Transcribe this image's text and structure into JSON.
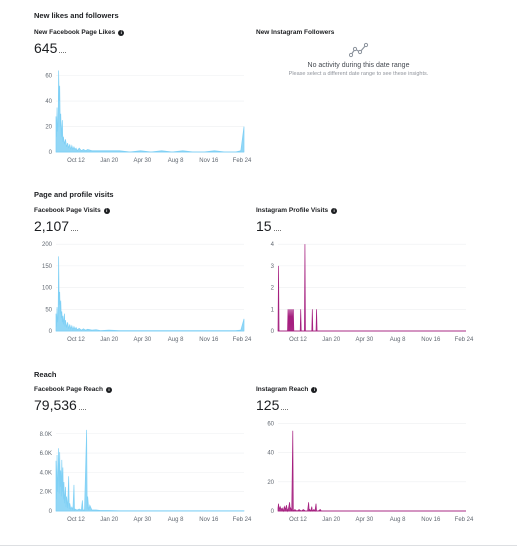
{
  "sections": [
    {
      "title": "New likes and followers"
    },
    {
      "title": "Page and profile visits"
    },
    {
      "title": "Reach"
    }
  ],
  "cards": {
    "fb_likes": {
      "title": "New Facebook Page Likes",
      "total": "645"
    },
    "ig_followers": {
      "title": "New Instagram Followers",
      "empty_title": "No activity during this date range",
      "empty_subtitle": "Please select a different date range to see these insights."
    },
    "fb_visits": {
      "title": "Facebook Page Visits",
      "total": "2,107"
    },
    "ig_visits": {
      "title": "Instagram Profile Visits",
      "total": "15"
    },
    "fb_reach": {
      "title": "Facebook Page Reach",
      "total": "79,536"
    },
    "ig_reach": {
      "title": "Instagram Reach",
      "total": "125"
    }
  },
  "colors": {
    "facebook": "#7fd0f5",
    "instagram": "#a51f7f"
  },
  "chart_data": [
    {
      "id": "fb_likes",
      "type": "area",
      "x_ticks": [
        "Oct 12",
        "Jan 20",
        "Apr 30",
        "Aug 8",
        "Nov 16",
        "Feb 24"
      ],
      "y_ticks": [
        "0",
        "20",
        "40",
        "60"
      ],
      "ylim": [
        0,
        66
      ],
      "points": [
        [
          0,
          28
        ],
        [
          0.5,
          12
        ],
        [
          1,
          35
        ],
        [
          1.5,
          16
        ],
        [
          2,
          22
        ],
        [
          2.5,
          64
        ],
        [
          3,
          40
        ],
        [
          3.5,
          52
        ],
        [
          4,
          20
        ],
        [
          4.5,
          30
        ],
        [
          5,
          12
        ],
        [
          6,
          25
        ],
        [
          6.5,
          8
        ],
        [
          7,
          12
        ],
        [
          8,
          6
        ],
        [
          9,
          10
        ],
        [
          10,
          4
        ],
        [
          11,
          7
        ],
        [
          12,
          3
        ],
        [
          13,
          6
        ],
        [
          14,
          2
        ],
        [
          15,
          5
        ],
        [
          16,
          2
        ],
        [
          17,
          4
        ],
        [
          18,
          2
        ],
        [
          19,
          3
        ],
        [
          20,
          1
        ],
        [
          22,
          3
        ],
        [
          24,
          1
        ],
        [
          26,
          2
        ],
        [
          28,
          1
        ],
        [
          30,
          2
        ],
        [
          34,
          1
        ],
        [
          38,
          1
        ],
        [
          42,
          1
        ],
        [
          50,
          1
        ],
        [
          60,
          1
        ],
        [
          70,
          0
        ],
        [
          80,
          1
        ],
        [
          90,
          0
        ],
        [
          100,
          1
        ],
        [
          110,
          0
        ],
        [
          120,
          1
        ],
        [
          130,
          0
        ],
        [
          140,
          0
        ],
        [
          150,
          1
        ],
        [
          160,
          0
        ],
        [
          170,
          0
        ],
        [
          175,
          1
        ],
        [
          178,
          20
        ]
      ]
    },
    {
      "id": "fb_visits",
      "type": "area",
      "x_ticks": [
        "Oct 12",
        "Jan 20",
        "Apr 30",
        "Aug 8",
        "Nov 16",
        "Feb 24"
      ],
      "y_ticks": [
        "0",
        "50",
        "100",
        "150",
        "200"
      ],
      "ylim": [
        0,
        205
      ],
      "points": [
        [
          0,
          40
        ],
        [
          0.5,
          10
        ],
        [
          1,
          55
        ],
        [
          1.5,
          20
        ],
        [
          2,
          30
        ],
        [
          2.5,
          172
        ],
        [
          3,
          60
        ],
        [
          3.5,
          90
        ],
        [
          4,
          40
        ],
        [
          4.5,
          70
        ],
        [
          5,
          30
        ],
        [
          5.5,
          45
        ],
        [
          6,
          20
        ],
        [
          6.5,
          35
        ],
        [
          7,
          15
        ],
        [
          8,
          40
        ],
        [
          8.5,
          10
        ],
        [
          9,
          25
        ],
        [
          10,
          8
        ],
        [
          11,
          20
        ],
        [
          12,
          5
        ],
        [
          13,
          15
        ],
        [
          14,
          5
        ],
        [
          15,
          12
        ],
        [
          16,
          3
        ],
        [
          17,
          10
        ],
        [
          18,
          4
        ],
        [
          19,
          8
        ],
        [
          20,
          3
        ],
        [
          22,
          6
        ],
        [
          24,
          2
        ],
        [
          26,
          5
        ],
        [
          28,
          2
        ],
        [
          30,
          4
        ],
        [
          34,
          2
        ],
        [
          38,
          3
        ],
        [
          42,
          1
        ],
        [
          50,
          2
        ],
        [
          60,
          1
        ],
        [
          70,
          1
        ],
        [
          80,
          1
        ],
        [
          90,
          1
        ],
        [
          100,
          1
        ],
        [
          110,
          1
        ],
        [
          120,
          1
        ],
        [
          130,
          1
        ],
        [
          140,
          1
        ],
        [
          150,
          1
        ],
        [
          160,
          1
        ],
        [
          170,
          1
        ],
        [
          175,
          2
        ],
        [
          178,
          28
        ]
      ]
    },
    {
      "id": "ig_visits",
      "type": "area",
      "x_ticks": [
        "Oct 12",
        "Jan 20",
        "Apr 30",
        "Aug 8",
        "Nov 16",
        "Feb 24"
      ],
      "y_ticks": [
        "0",
        "1",
        "2",
        "3",
        "4"
      ],
      "ylim": [
        0,
        4.1
      ],
      "points": [
        [
          0,
          0
        ],
        [
          0.5,
          3
        ],
        [
          1,
          0
        ],
        [
          9,
          0
        ],
        [
          9.5,
          1
        ],
        [
          10,
          0
        ],
        [
          10.5,
          1
        ],
        [
          11,
          0
        ],
        [
          11.5,
          1
        ],
        [
          12,
          0
        ],
        [
          12.5,
          1
        ],
        [
          13,
          0
        ],
        [
          13.5,
          1
        ],
        [
          14,
          0
        ],
        [
          14.5,
          1
        ],
        [
          15,
          0
        ],
        [
          21,
          0
        ],
        [
          21.5,
          1
        ],
        [
          22,
          0
        ],
        [
          25,
          0
        ],
        [
          25.5,
          4
        ],
        [
          26,
          0
        ],
        [
          32,
          0
        ],
        [
          32.5,
          1
        ],
        [
          33,
          0
        ],
        [
          36,
          0
        ],
        [
          36.5,
          1
        ],
        [
          37,
          0
        ],
        [
          178,
          0
        ]
      ]
    },
    {
      "id": "fb_reach",
      "type": "area",
      "x_ticks": [
        "Oct 12",
        "Jan 20",
        "Apr 30",
        "Aug 8",
        "Nov 16",
        "Feb 24"
      ],
      "y_ticks": [
        "0",
        "2.0K",
        "4.0K",
        "6.0K",
        "8.0K"
      ],
      "ylim": [
        0,
        8700
      ],
      "points": [
        [
          0,
          5200
        ],
        [
          0.5,
          1200
        ],
        [
          1,
          5800
        ],
        [
          1.5,
          2000
        ],
        [
          2,
          3500
        ],
        [
          2.5,
          6500
        ],
        [
          3,
          1800
        ],
        [
          3.5,
          6100
        ],
        [
          4,
          2500
        ],
        [
          4.5,
          4200
        ],
        [
          5,
          1500
        ],
        [
          5.5,
          5300
        ],
        [
          6,
          2000
        ],
        [
          6.5,
          4500
        ],
        [
          7,
          1200
        ],
        [
          7.5,
          3000
        ],
        [
          8,
          800
        ],
        [
          9,
          2500
        ],
        [
          9.5,
          400
        ],
        [
          10,
          1500
        ],
        [
          11,
          300
        ],
        [
          12,
          3600
        ],
        [
          12.5,
          200
        ],
        [
          13,
          800
        ],
        [
          14,
          200
        ],
        [
          15,
          400
        ],
        [
          16,
          100
        ],
        [
          17,
          2700
        ],
        [
          17.5,
          100
        ],
        [
          18,
          200
        ],
        [
          20,
          100
        ],
        [
          22,
          200
        ],
        [
          24,
          100
        ],
        [
          25,
          1100
        ],
        [
          25.5,
          100
        ],
        [
          27,
          100
        ],
        [
          29,
          8400
        ],
        [
          29.5,
          200
        ],
        [
          30,
          1500
        ],
        [
          31,
          100
        ],
        [
          32,
          600
        ],
        [
          34,
          100
        ],
        [
          38,
          100
        ],
        [
          42,
          50
        ],
        [
          50,
          50
        ],
        [
          60,
          30
        ],
        [
          70,
          30
        ],
        [
          80,
          30
        ],
        [
          90,
          30
        ],
        [
          100,
          30
        ],
        [
          110,
          30
        ],
        [
          120,
          30
        ],
        [
          130,
          30
        ],
        [
          140,
          30
        ],
        [
          150,
          30
        ],
        [
          160,
          30
        ],
        [
          170,
          30
        ],
        [
          178,
          30
        ]
      ]
    },
    {
      "id": "ig_reach",
      "type": "area",
      "x_ticks": [
        "Oct 12",
        "Jan 20",
        "Apr 30",
        "Aug 8",
        "Nov 16",
        "Feb 24"
      ],
      "y_ticks": [
        "0",
        "20",
        "40",
        "60"
      ],
      "ylim": [
        0,
        61
      ],
      "points": [
        [
          0,
          2
        ],
        [
          0.5,
          5
        ],
        [
          1,
          1
        ],
        [
          2,
          3
        ],
        [
          3,
          1
        ],
        [
          4,
          2
        ],
        [
          5,
          0
        ],
        [
          6,
          3
        ],
        [
          7,
          1
        ],
        [
          8,
          4
        ],
        [
          9,
          0
        ],
        [
          10,
          2
        ],
        [
          11,
          6
        ],
        [
          11.5,
          1
        ],
        [
          12,
          2
        ],
        [
          13,
          0
        ],
        [
          14,
          55
        ],
        [
          14.5,
          0
        ],
        [
          16,
          1
        ],
        [
          18,
          0
        ],
        [
          20,
          1
        ],
        [
          22,
          0
        ],
        [
          24,
          1
        ],
        [
          26,
          0
        ],
        [
          28,
          0
        ],
        [
          29,
          6
        ],
        [
          29.5,
          0
        ],
        [
          30,
          1
        ],
        [
          31,
          0
        ],
        [
          32,
          3
        ],
        [
          32.5,
          0
        ],
        [
          34,
          1
        ],
        [
          35,
          0
        ],
        [
          36,
          5
        ],
        [
          36.5,
          0
        ],
        [
          38,
          0
        ],
        [
          40,
          1
        ],
        [
          41,
          0
        ],
        [
          50,
          0
        ],
        [
          60,
          0
        ],
        [
          70,
          0
        ],
        [
          80,
          0
        ],
        [
          90,
          0
        ],
        [
          100,
          0
        ],
        [
          110,
          0
        ],
        [
          120,
          0
        ],
        [
          130,
          0
        ],
        [
          140,
          0
        ],
        [
          150,
          0
        ],
        [
          160,
          0
        ],
        [
          170,
          0
        ],
        [
          178,
          0
        ]
      ]
    }
  ]
}
